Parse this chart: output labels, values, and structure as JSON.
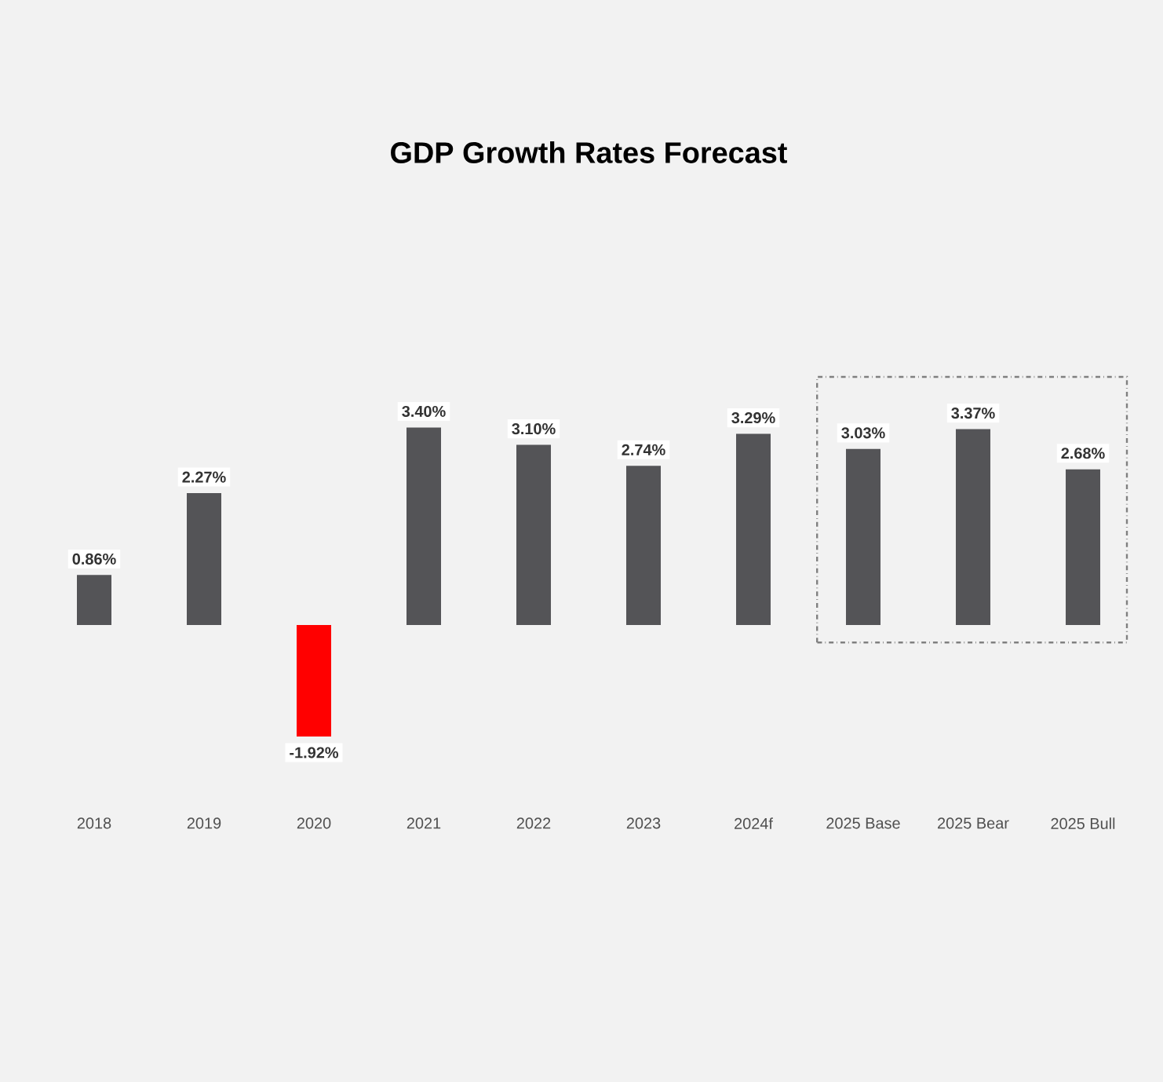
{
  "chart_data": {
    "type": "bar",
    "title": "GDP Growth Rates Forecast",
    "categories": [
      "2018",
      "2019",
      "2020",
      "2021",
      "2022",
      "2023",
      "2024f",
      "2025 Base",
      "2025 Bear",
      "2025 Bull"
    ],
    "values": [
      0.86,
      2.27,
      -1.92,
      3.4,
      3.1,
      2.74,
      3.29,
      3.03,
      3.37,
      2.68
    ],
    "colors": [
      "#545457",
      "#545457",
      "#ff0000",
      "#545457",
      "#545457",
      "#545457",
      "#545457",
      "#545457",
      "#545457",
      "#545457"
    ],
    "value_labels": [
      "0.86%",
      "2.27%",
      "-1.92%",
      "3.40%",
      "3.10%",
      "2.74%",
      "3.29%",
      "3.03%",
      "3.37%",
      "2.68%"
    ]
  }
}
